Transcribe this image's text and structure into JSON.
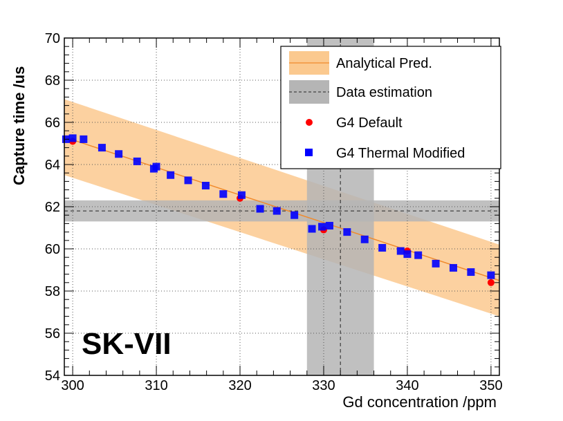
{
  "chart_data": {
    "type": "scatter",
    "xlabel": "Gd concentration /ppm",
    "ylabel": "Capture time /us",
    "xlim": [
      299,
      351
    ],
    "ylim": [
      54,
      70
    ],
    "xticks": [
      300,
      310,
      320,
      330,
      340,
      350
    ],
    "yticks": [
      54,
      56,
      58,
      60,
      62,
      64,
      66,
      68,
      70
    ],
    "grid": true,
    "stamp": "SK-VII",
    "legend_position": "top-right",
    "analytical": {
      "name": "Analytical Pred.",
      "color": "#f08a2c",
      "band_color": "#fbc98f",
      "x": [
        299,
        351
      ],
      "y": [
        65.3,
        58.5
      ],
      "band_upper": [
        67.1,
        60.2
      ],
      "band_lower": [
        63.5,
        56.8
      ]
    },
    "data_estimation": {
      "name": "Data estimation",
      "band_color": "#b5b5b5",
      "y_center": 61.8,
      "y_range": [
        61.3,
        62.3
      ],
      "x_center": 332.0,
      "x_range": [
        328.0,
        336.0
      ]
    },
    "series": [
      {
        "name": "G4 Default",
        "marker": "circle",
        "color": "#ff0000",
        "points": [
          [
            300,
            65.1
          ],
          [
            320,
            62.4
          ],
          [
            330,
            60.9
          ],
          [
            340,
            59.9
          ],
          [
            350,
            58.4
          ]
        ]
      },
      {
        "name": "G4 Thermal Modified",
        "marker": "square",
        "color": "#0000ff",
        "points": [
          [
            299.2,
            65.2
          ],
          [
            300.0,
            65.25
          ],
          [
            301.3,
            65.2
          ],
          [
            303.5,
            64.8
          ],
          [
            305.5,
            64.5
          ],
          [
            307.7,
            64.15
          ],
          [
            309.7,
            63.8
          ],
          [
            310.0,
            63.9
          ],
          [
            311.7,
            63.5
          ],
          [
            313.8,
            63.25
          ],
          [
            315.9,
            63.0
          ],
          [
            318.0,
            62.6
          ],
          [
            320.2,
            62.55
          ],
          [
            322.4,
            61.9
          ],
          [
            324.4,
            61.8
          ],
          [
            326.5,
            61.6
          ],
          [
            328.6,
            60.95
          ],
          [
            329.8,
            61.05
          ],
          [
            330.7,
            61.1
          ],
          [
            332.8,
            60.8
          ],
          [
            334.9,
            60.45
          ],
          [
            337.0,
            60.05
          ],
          [
            339.2,
            59.9
          ],
          [
            340.0,
            59.75
          ],
          [
            341.3,
            59.7
          ],
          [
            343.4,
            59.3
          ],
          [
            345.5,
            59.1
          ],
          [
            347.6,
            58.9
          ],
          [
            350.0,
            58.75
          ]
        ]
      }
    ]
  }
}
